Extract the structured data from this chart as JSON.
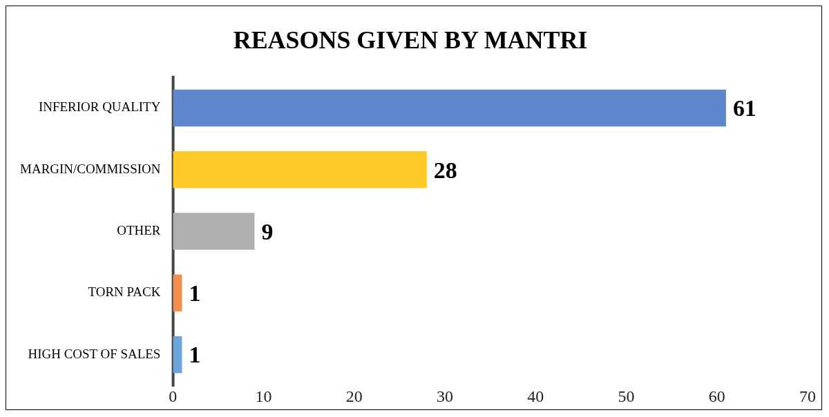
{
  "chart_data": {
    "type": "bar",
    "orientation": "horizontal",
    "title": "REASONS GIVEN BY MANTRI",
    "categories": [
      "INFERIOR QUALITY",
      "MARGIN/COMMISSION",
      "OTHER",
      "TORN PACK",
      "HIGH COST OF SALES"
    ],
    "values": [
      61,
      28,
      9,
      1,
      1
    ],
    "colors": [
      "#5f87cb",
      "#ffc928",
      "#b0b0b0",
      "#f08f4f",
      "#6ea6dc"
    ],
    "xlim": [
      0,
      70
    ],
    "xticks": [
      0,
      10,
      20,
      30,
      40,
      50,
      60,
      70
    ],
    "data_labels": true,
    "grid": false,
    "legend": false
  }
}
